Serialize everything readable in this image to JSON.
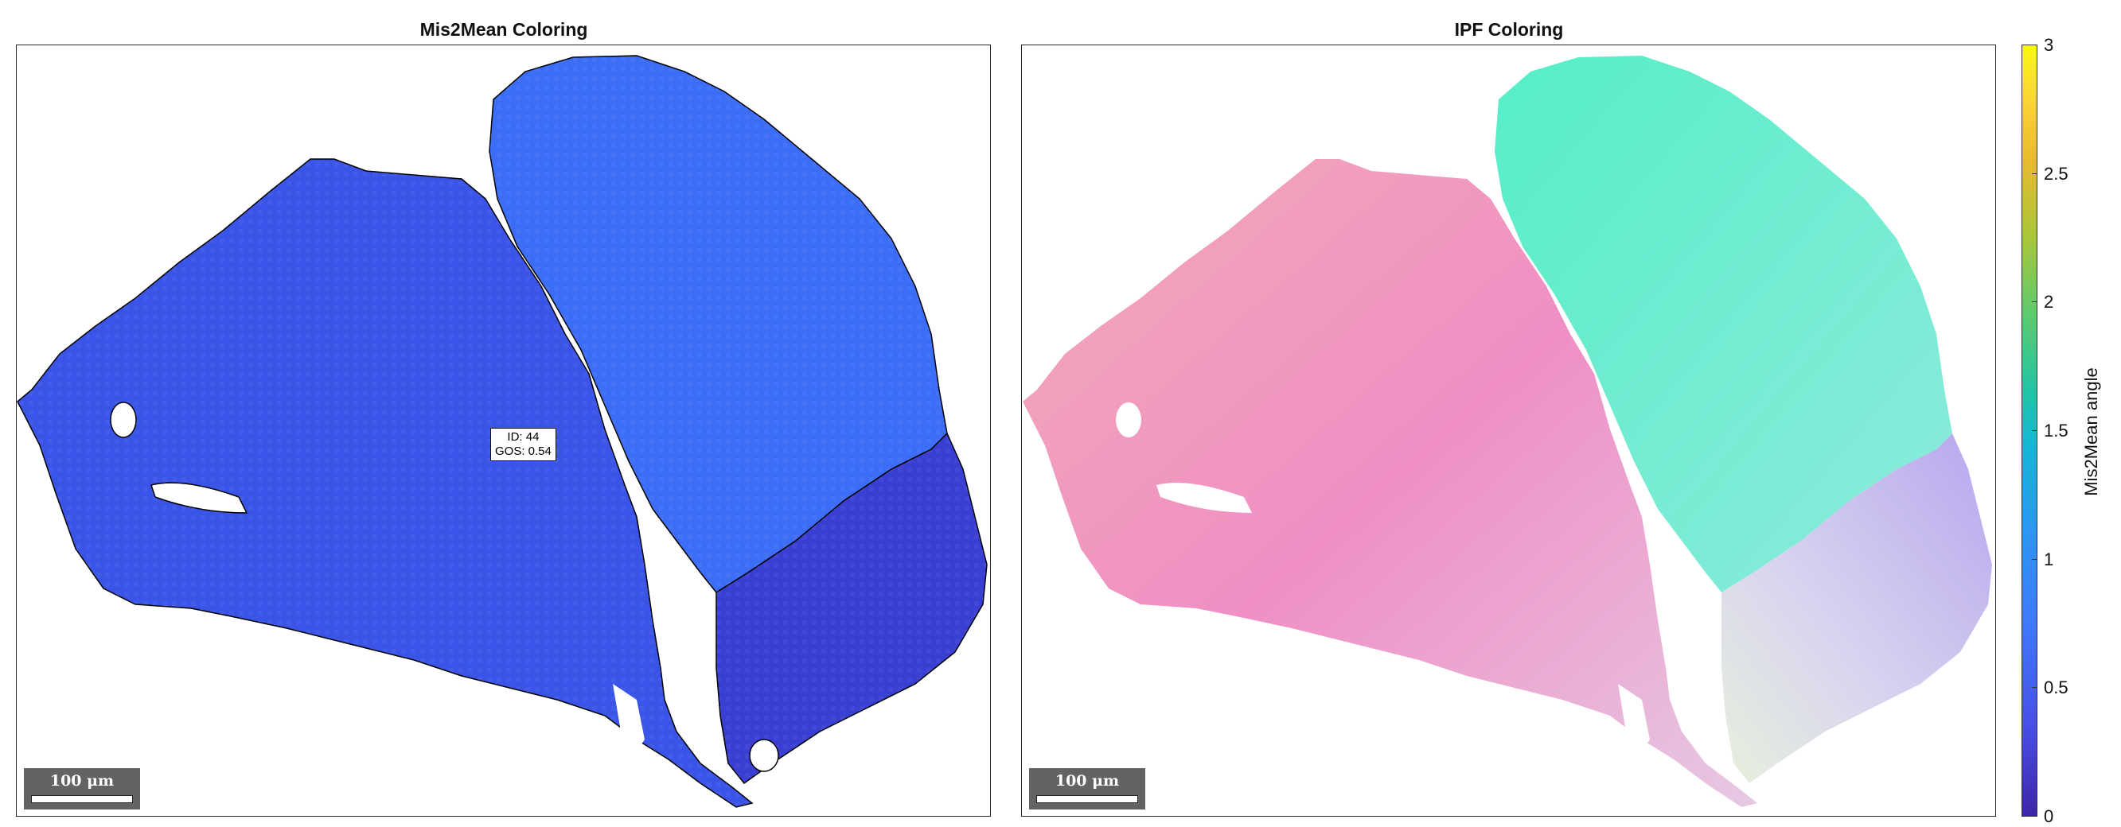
{
  "panels": [
    {
      "title": "Mis2Mean Coloring",
      "tooltip": {
        "id_text": "ID: 44",
        "gos_text": "GOS: 0.54"
      },
      "scalebar": "100 μm"
    },
    {
      "title": "IPF Coloring",
      "scalebar": "100 μm"
    }
  ],
  "colorbar": {
    "label": "Mis2Mean angle",
    "ticks": [
      "0",
      "0.5",
      "1",
      "1.5",
      "2",
      "2.5",
      "3"
    ],
    "colormap": "parula"
  },
  "chart_data": [
    {
      "type": "heatmap",
      "title": "Mis2Mean Coloring",
      "grain_mean_mis2mean_deg": {
        "left-grain": 0.3,
        "upper-right-grain": 0.75,
        "lower-right-grain": 0.2
      },
      "grain_id_labelled": 44,
      "gos_labelled": 0.54,
      "clim": [
        0,
        3
      ],
      "scalebar_um": 100
    },
    {
      "type": "heatmap",
      "title": "IPF Coloring",
      "grain_colors": {
        "left-grain": "#f3a3c8",
        "upper-right-grain": "#62f0cf",
        "lower-right-grain": "#d7cbef"
      },
      "scalebar_um": 100
    }
  ]
}
